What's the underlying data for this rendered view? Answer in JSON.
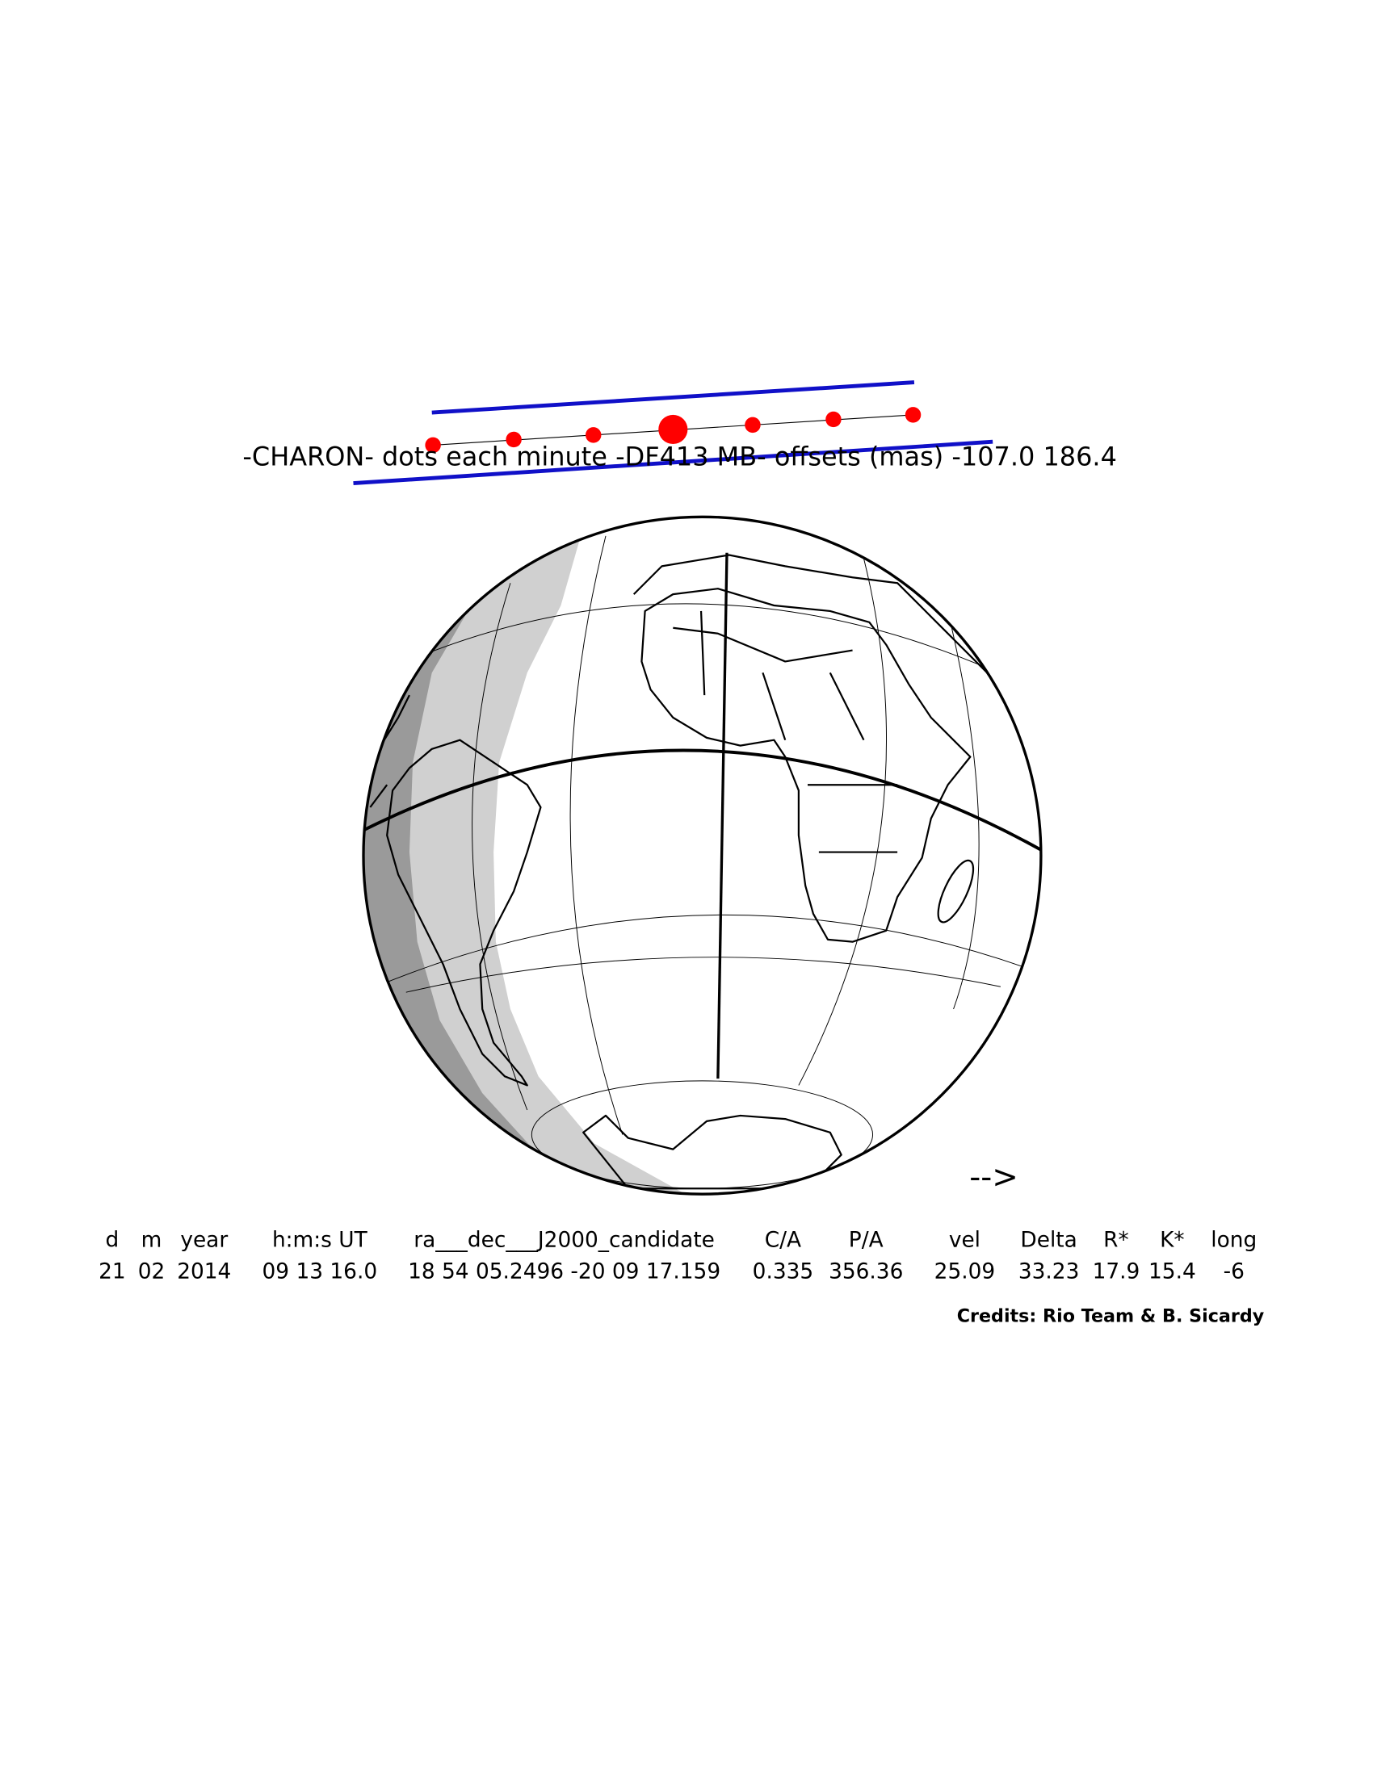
{
  "title": "-CHARON- dots each minute -DF413 MB- offsets (mas) -107.0 186.4",
  "arrow": "-->",
  "table": {
    "headers": [
      "d",
      "m",
      "year",
      "h:m:s UT",
      "ra___dec___J2000_candidate",
      "C/A",
      "P/A",
      "vel",
      "Delta",
      "R*",
      "K*",
      "long"
    ],
    "rows": [
      [
        "21",
        "02",
        "2014",
        "09 13 16.0",
        "18 54 05.2496 -20 09 17.159",
        "0.335",
        "356.36",
        "25.09",
        "33.23",
        "17.9",
        "15.4",
        "-6"
      ]
    ]
  },
  "credits": "Credits: Rio Team & B. Sicardy"
}
